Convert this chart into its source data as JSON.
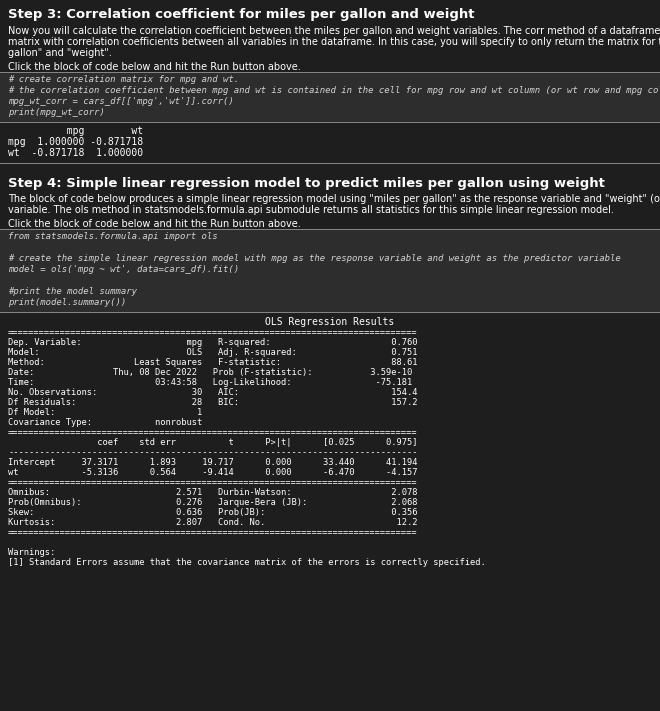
{
  "bg_color": "#1e1e1e",
  "text_color": "#ffffff",
  "code_bg": "#252526",
  "output_bg": "#1e1e1e",
  "sep_color": "#555555",
  "step3_title": "Step 3: Correlation coefficient for miles per gallon and weight",
  "step3_desc1": "Now you will calculate the correlation coefficient between the miles per gallon and weight variables. The corr method of a dataframe returns the correlation",
  "step3_desc2": "matrix with correlation coefficients between all variables in the dataframe. In this case, you will specify to only return the matrix for the variables \"miles per",
  "step3_desc3": "gallon\" and \"weight\".",
  "step3_click": "Click the block of code below and hit the Run button above.",
  "step3_code_lines": [
    "# create correlation matrix for mpg and wt.",
    "# the correlation coefficient between mpg and wt is contained in the cell for mpg row and wt column (or wt row and mpg column)",
    "mpg_wt_corr = cars_df[['mpg','wt']].corr()",
    "print(mpg_wt_corr)"
  ],
  "step3_output_lines": [
    "          mpg        wt",
    "mpg  1.000000 -0.871718",
    "wt  -0.871718  1.000000"
  ],
  "step4_title": "Step 4: Simple linear regression model to predict miles per gallon using weight",
  "step4_desc1": "The block of code below produces a simple linear regression model using \"miles per gallon\" as the response variable and \"weight\" (of the car) as a predictor",
  "step4_desc2": "variable. The ols method in statsmodels.formula.api submodule returns all statistics for this simple linear regression model.",
  "step4_click": "Click the block of code below and hit the Run button above.",
  "step4_code_lines": [
    "from statsmodels.formula.api import ols",
    "",
    "# create the simple linear regression model with mpg as the response variable and weight as the predictor variable",
    "model = ols('mpg ~ wt', data=cars_df).fit()",
    "",
    "#print the model summary",
    "print(model.summary())"
  ],
  "ols_title": "                            OLS Regression Results                            ",
  "ols_lines": [
    "==============================================================================",
    "Dep. Variable:                    mpg   R-squared:                       0.760",
    "Model:                            OLS   Adj. R-squared:                  0.751",
    "Method:                 Least Squares   F-statistic:                     88.61",
    "Date:               Thu, 08 Dec 2022   Prob (F-statistic):           3.59e-10",
    "Time:                       03:43:58   Log-Likelihood:                -75.181",
    "No. Observations:                  30   AIC:                             154.4",
    "Df Residuals:                      28   BIC:                             157.2",
    "Df Model:                           1",
    "Covariance Type:            nonrobust",
    "==============================================================================",
    "                 coef    std err          t      P>|t|      [0.025      0.975]",
    "------------------------------------------------------------------------------",
    "Intercept     37.3171      1.893     19.717      0.000      33.440      41.194",
    "wt            -5.3136      0.564     -9.414      0.000      -6.470      -4.157",
    "==============================================================================",
    "Omnibus:                        2.571   Durbin-Watson:                   2.078",
    "Prob(Omnibus):                  0.276   Jarque-Bera (JB):                2.068",
    "Skew:                           0.636   Prob(JB):                        0.356",
    "Kurtosis:                       2.807   Cond. No.                         12.2",
    "=============================================================================="
  ],
  "warnings_lines": [
    "",
    "Warnings:",
    "[1] Standard Errors assume that the covariance matrix of the errors is correctly specified."
  ]
}
